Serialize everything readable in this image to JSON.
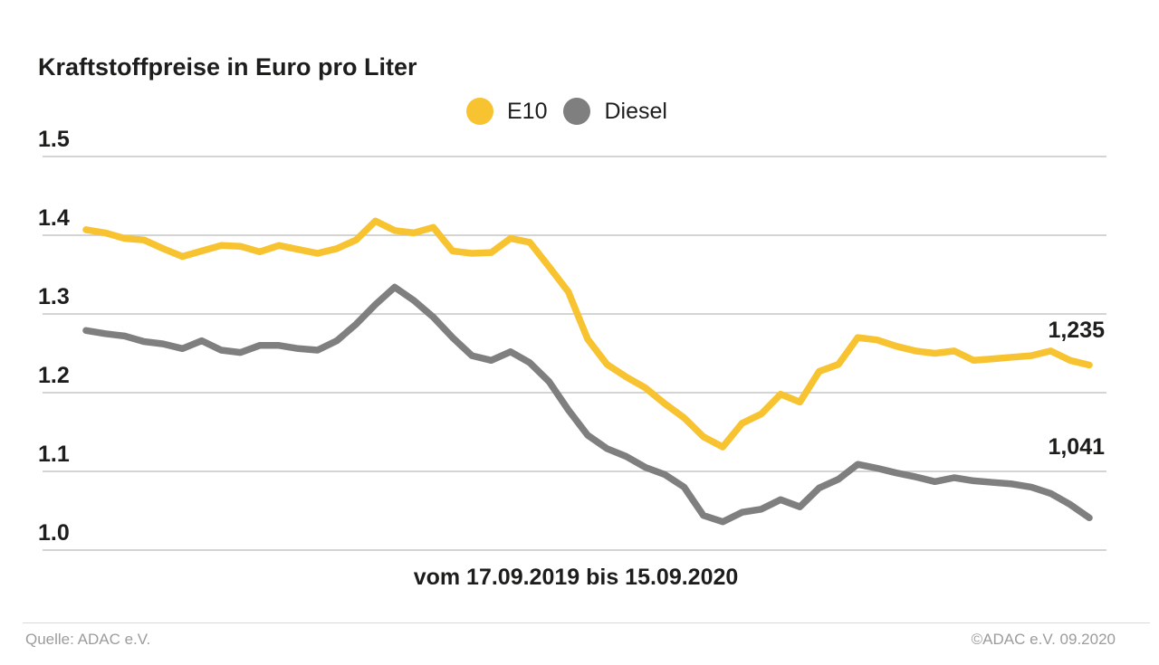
{
  "title": "Kraftstoffpreise in Euro pro Liter",
  "legend": [
    {
      "label": "E10",
      "color": "#f7c331"
    },
    {
      "label": "Diesel",
      "color": "#7f7f7f"
    }
  ],
  "caption": "vom 17.09.2019 bis 15.09.2020",
  "end_labels": {
    "e10": "1,235",
    "diesel": "1,041"
  },
  "footer": {
    "source": "Quelle: ADAC e.V.",
    "copyright": "©ADAC e.V. 09.2020"
  },
  "colors": {
    "e10": "#f7c331",
    "diesel": "#7f7f7f",
    "grid": "#c6c6c6",
    "text": "#1d1d1b",
    "muted": "#9c9c9b"
  },
  "chart_data": {
    "type": "line",
    "title": "Kraftstoffpreise in Euro pro Liter",
    "xlabel": "vom 17.09.2019 bis 15.09.2020",
    "ylabel": "Euro pro Liter",
    "x_range": {
      "from": "17.09.2019",
      "to": "15.09.2020",
      "interval": "weekly"
    },
    "ylim": [
      1.0,
      1.5
    ],
    "y_ticks": [
      "1.5",
      "1.4",
      "1.3",
      "1.2",
      "1.1",
      "1.0"
    ],
    "grid": true,
    "legend_position": "top-center",
    "series": [
      {
        "name": "E10",
        "color": "#f7c331",
        "end_label": "1,235",
        "values": [
          1.407,
          1.403,
          1.396,
          1.394,
          1.383,
          1.373,
          1.38,
          1.387,
          1.386,
          1.379,
          1.387,
          1.382,
          1.377,
          1.383,
          1.394,
          1.418,
          1.406,
          1.403,
          1.41,
          1.38,
          1.377,
          1.378,
          1.396,
          1.391,
          1.36,
          1.328,
          1.268,
          1.236,
          1.22,
          1.206,
          1.186,
          1.168,
          1.144,
          1.131,
          1.161,
          1.173,
          1.198,
          1.188,
          1.227,
          1.236,
          1.27,
          1.267,
          1.259,
          1.253,
          1.25,
          1.253,
          1.241,
          1.243,
          1.245,
          1.247,
          1.253,
          1.241,
          1.235
        ]
      },
      {
        "name": "Diesel",
        "color": "#7f7f7f",
        "end_label": "1,041",
        "values": [
          1.279,
          1.275,
          1.272,
          1.265,
          1.262,
          1.256,
          1.266,
          1.254,
          1.251,
          1.26,
          1.26,
          1.256,
          1.254,
          1.266,
          1.287,
          1.312,
          1.334,
          1.317,
          1.296,
          1.27,
          1.247,
          1.241,
          1.252,
          1.238,
          1.214,
          1.178,
          1.146,
          1.129,
          1.119,
          1.105,
          1.096,
          1.08,
          1.044,
          1.036,
          1.048,
          1.052,
          1.064,
          1.055,
          1.079,
          1.09,
          1.109,
          1.104,
          1.098,
          1.093,
          1.087,
          1.092,
          1.088,
          1.086,
          1.084,
          1.08,
          1.072,
          1.058,
          1.041
        ]
      }
    ]
  }
}
